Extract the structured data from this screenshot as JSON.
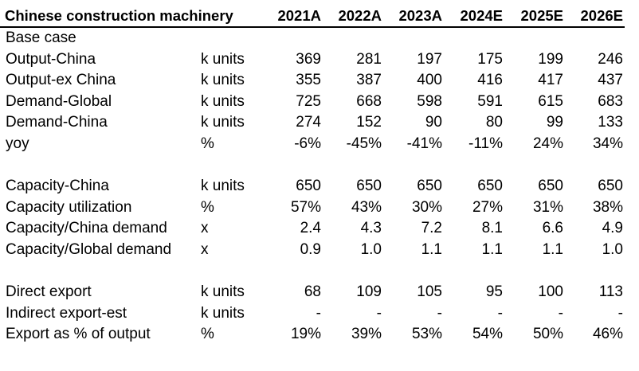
{
  "table": {
    "title": "Chinese construction machinery",
    "years": [
      "2021A",
      "2022A",
      "2023A",
      "2024E",
      "2025E",
      "2026E"
    ],
    "sections": [
      {
        "rows": [
          {
            "label": "Base case",
            "unit": "",
            "values": [
              "",
              "",
              "",
              "",
              "",
              ""
            ]
          },
          {
            "label": "Output-China",
            "unit": "k units",
            "values": [
              "369",
              "281",
              "197",
              "175",
              "199",
              "246"
            ]
          },
          {
            "label": "Output-ex China",
            "unit": "k units",
            "values": [
              "355",
              "387",
              "400",
              "416",
              "417",
              "437"
            ]
          },
          {
            "label": "Demand-Global",
            "unit": "k units",
            "values": [
              "725",
              "668",
              "598",
              "591",
              "615",
              "683"
            ]
          },
          {
            "label": "Demand-China",
            "unit": "k units",
            "values": [
              "274",
              "152",
              "90",
              "80",
              "99",
              "133"
            ]
          },
          {
            "label": "yoy",
            "unit": "%",
            "values": [
              "-6%",
              "-45%",
              "-41%",
              "-11%",
              "24%",
              "34%"
            ]
          }
        ]
      },
      {
        "rows": [
          {
            "label": "Capacity-China",
            "unit": "k units",
            "values": [
              "650",
              "650",
              "650",
              "650",
              "650",
              "650"
            ]
          },
          {
            "label": "Capacity utilization",
            "unit": "%",
            "values": [
              "57%",
              "43%",
              "30%",
              "27%",
              "31%",
              "38%"
            ]
          },
          {
            "label": "Capacity/China demand",
            "unit": "x",
            "values": [
              "2.4",
              "4.3",
              "7.2",
              "8.1",
              "6.6",
              "4.9"
            ]
          },
          {
            "label": "Capacity/Global demand",
            "unit": "x",
            "values": [
              "0.9",
              "1.0",
              "1.1",
              "1.1",
              "1.1",
              "1.0"
            ]
          }
        ]
      },
      {
        "rows": [
          {
            "label": "Direct export",
            "unit": "k units",
            "values": [
              "68",
              "109",
              "105",
              "95",
              "100",
              "113"
            ]
          },
          {
            "label": "Indirect export-est",
            "unit": "k units",
            "values": [
              "-",
              "-",
              "-",
              "-",
              "-",
              "-"
            ]
          },
          {
            "label": "Export as % of output",
            "unit": "%",
            "values": [
              "19%",
              "39%",
              "53%",
              "54%",
              "50%",
              "46%"
            ]
          }
        ]
      }
    ]
  }
}
